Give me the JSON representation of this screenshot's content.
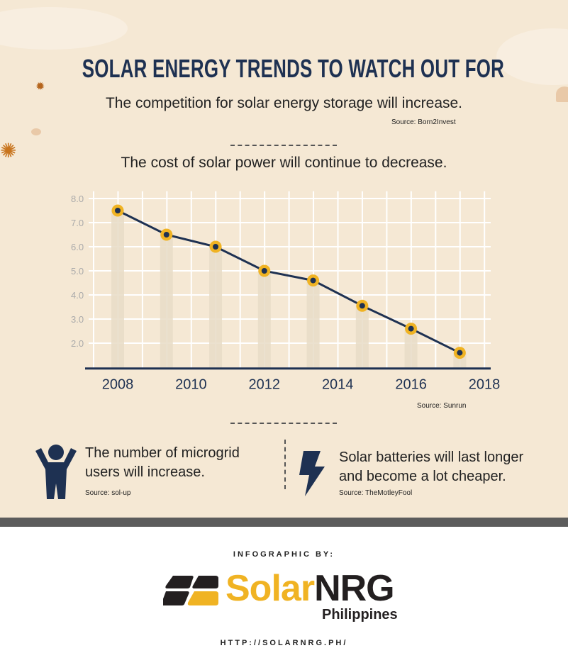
{
  "title": "SOLAR ENERGY TRENDS TO WATCH OUT FOR",
  "trend1": {
    "text": "The competition for solar energy storage will increase.",
    "source": "Source: Born2Invest"
  },
  "trend2": {
    "text": "The cost of solar power will continue to decrease.",
    "source": "Source: Sunrun"
  },
  "trend3": {
    "line1": "The number of microgrid",
    "line2": "users will increase.",
    "source": "Source: sol-up",
    "icon": "person-icon"
  },
  "trend4": {
    "line1": "Solar batteries will last longer",
    "line2": "and become a lot cheaper.",
    "source": "Source: TheMotleyFool",
    "icon": "lightning-icon"
  },
  "footer": {
    "by": "INFOGRAPHIC BY:",
    "logo_solar": "Solar",
    "logo_nrg": "NRG",
    "logo_sub": "Philippines",
    "url": "HTTP://SOLARNRG.PH/"
  },
  "colors": {
    "background": "#f5e8d4",
    "navy": "#1e3152",
    "accent": "#f0b323",
    "logo_dark": "#231f20"
  },
  "chart_data": {
    "type": "line",
    "x": [
      2008,
      2009.33,
      2010.67,
      2012,
      2013.33,
      2014.67,
      2016,
      2017.33
    ],
    "values": [
      7.5,
      6.5,
      6.0,
      5.0,
      4.6,
      3.55,
      2.6,
      1.6
    ],
    "xticks": [
      "2008",
      "2010",
      "2012",
      "2014",
      "2016",
      "2018"
    ],
    "yticks": [
      "2.0",
      "3.0",
      "4.0",
      "5.0",
      "6.0",
      "7.0",
      "8.0"
    ],
    "xlim": [
      2008,
      2018
    ],
    "ylim": [
      1.0,
      8.0
    ],
    "grid": true
  }
}
